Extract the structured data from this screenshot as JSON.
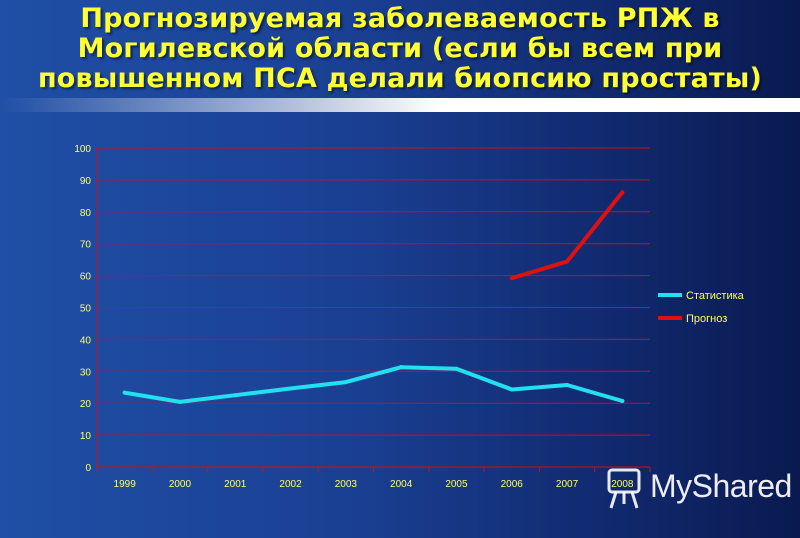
{
  "slide": {
    "title_line1": "Прогнозируемая заболеваемость РПЖ в",
    "title_line2": "Могилевской области  (если бы всем при",
    "title_line3": "повышенном ПСА делали биопсию простаты)"
  },
  "watermark": {
    "text": "MyShared",
    "icon": "presentation-board-icon"
  },
  "colors": {
    "title": "#ffff33",
    "grid": "#cc1111",
    "axis_text": "#ffff66",
    "series_statistika": "#22e0f0",
    "series_prognoz": "#e01010"
  },
  "chart_data": {
    "type": "line",
    "title": "",
    "xlabel": "",
    "ylabel": "",
    "categories": [
      "1999",
      "2000",
      "2001",
      "2002",
      "2003",
      "2004",
      "2005",
      "2006",
      "2007",
      "2008"
    ],
    "ylim": [
      0,
      100
    ],
    "yticks": [
      0,
      10,
      20,
      30,
      40,
      50,
      60,
      70,
      80,
      90,
      100
    ],
    "grid": true,
    "legend_position": "right",
    "series": [
      {
        "name": "Статистика",
        "color": "#22e0f0",
        "values": [
          23.3,
          20.4,
          22.5,
          24.6,
          26.6,
          31.3,
          30.8,
          24.3,
          25.7,
          20.7
        ]
      },
      {
        "name": "Прогноз",
        "color": "#e01010",
        "values": [
          null,
          null,
          null,
          null,
          null,
          null,
          null,
          59.2,
          64.4,
          86.1
        ]
      }
    ]
  }
}
